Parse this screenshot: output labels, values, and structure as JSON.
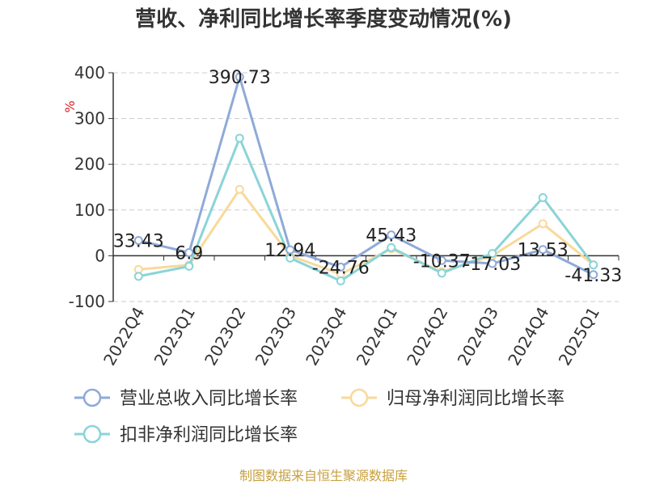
{
  "title": "营收、净利同比增长率季度变动情况(%)",
  "source": "制图数据来自恒生聚源数据库",
  "chart_data": {
    "type": "line",
    "title": "营收、净利同比增长率季度变动情况(%)",
    "ylabel": "%",
    "ylim": [
      -100,
      400
    ],
    "yticks": [
      -100,
      0,
      100,
      200,
      300,
      400
    ],
    "grid": true,
    "legend_position": "bottom",
    "categories": [
      "2022Q4",
      "2023Q1",
      "2023Q2",
      "2023Q3",
      "2023Q4",
      "2024Q1",
      "2024Q2",
      "2024Q3",
      "2024Q4",
      "2025Q1"
    ],
    "series": [
      {
        "name": "营业总收入同比增长率",
        "color": "#8faad8",
        "values": [
          33.43,
          6.9,
          390.73,
          12.94,
          -24.76,
          45.43,
          -10.37,
          -17.03,
          13.53,
          -41.33
        ],
        "labels": [
          "33.43",
          "6.9",
          "390.73",
          "12.94",
          "-24.76",
          "45.43",
          "-10.37",
          "-17.03",
          "13.53",
          "-41.33"
        ]
      },
      {
        "name": "归母净利润同比增长率",
        "color": "#f9d99a",
        "values": [
          -30,
          -20,
          145,
          0,
          -40,
          15,
          -35,
          0,
          70,
          -20
        ]
      },
      {
        "name": "扣非净利润同比增长率",
        "color": "#8ad4d8",
        "values": [
          -45,
          -23,
          257,
          -5,
          -55,
          18,
          -38,
          5,
          127,
          -20
        ]
      }
    ]
  }
}
